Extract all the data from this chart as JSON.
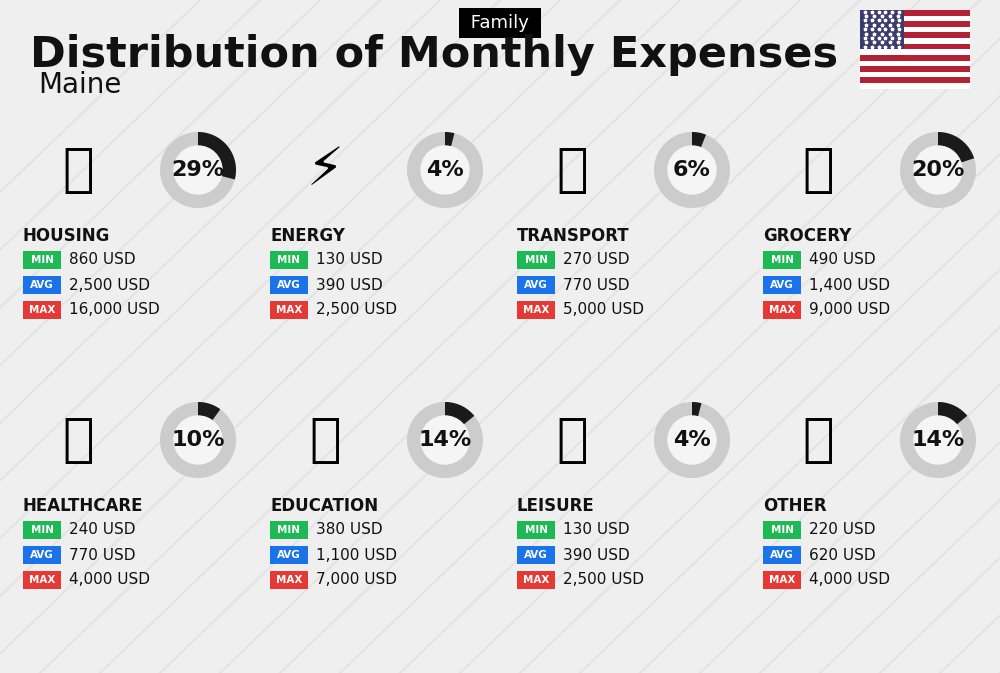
{
  "title": "Distribution of Monthly Expenses",
  "subtitle": "Maine",
  "family_label": "Family",
  "bg_color": "#efefef",
  "categories": [
    {
      "name": "HOUSING",
      "pct": 29,
      "min": "860 USD",
      "avg": "2,500 USD",
      "max": "16,000 USD",
      "row": 0,
      "col": 0
    },
    {
      "name": "ENERGY",
      "pct": 4,
      "min": "130 USD",
      "avg": "390 USD",
      "max": "2,500 USD",
      "row": 0,
      "col": 1
    },
    {
      "name": "TRANSPORT",
      "pct": 6,
      "min": "270 USD",
      "avg": "770 USD",
      "max": "5,000 USD",
      "row": 0,
      "col": 2
    },
    {
      "name": "GROCERY",
      "pct": 20,
      "min": "490 USD",
      "avg": "1,400 USD",
      "max": "9,000 USD",
      "row": 0,
      "col": 3
    },
    {
      "name": "HEALTHCARE",
      "pct": 10,
      "min": "240 USD",
      "avg": "770 USD",
      "max": "4,000 USD",
      "row": 1,
      "col": 0
    },
    {
      "name": "EDUCATION",
      "pct": 14,
      "min": "380 USD",
      "avg": "1,100 USD",
      "max": "7,000 USD",
      "row": 1,
      "col": 1
    },
    {
      "name": "LEISURE",
      "pct": 4,
      "min": "130 USD",
      "avg": "390 USD",
      "max": "2,500 USD",
      "row": 1,
      "col": 2
    },
    {
      "name": "OTHER",
      "pct": 14,
      "min": "220 USD",
      "avg": "620 USD",
      "max": "4,000 USD",
      "row": 1,
      "col": 3
    }
  ],
  "min_color": "#1db954",
  "avg_color": "#1a73e8",
  "max_color": "#e53935",
  "text_color": "#111111",
  "donut_filled_color": "#1a1a1a",
  "donut_empty_color": "#cccccc",
  "card_color": "#f5f5f5",
  "card_edge_color": "#e0e0e0"
}
